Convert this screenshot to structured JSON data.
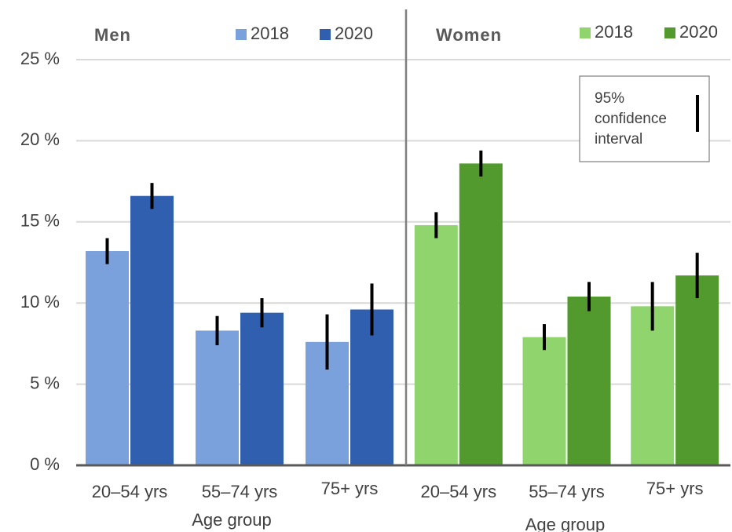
{
  "chart_data": [
    {
      "type": "bar",
      "title": "Men",
      "x_label": "Age group",
      "categories": [
        "20–54 yrs",
        "55–74 yrs",
        "75+ yrs"
      ],
      "series": [
        {
          "name": "2018",
          "color": "#7aa1dc",
          "values": [
            13.2,
            8.3,
            7.6
          ],
          "errors": [
            0.8,
            0.9,
            1.7
          ]
        },
        {
          "name": "2020",
          "color": "#2f5fae",
          "values": [
            16.6,
            9.4,
            9.6
          ],
          "errors": [
            0.8,
            0.9,
            1.6
          ]
        }
      ],
      "ylim": [
        0,
        25
      ],
      "yticks": [
        {
          "value": 0,
          "label": "0 %"
        },
        {
          "value": 5,
          "label": "5 %"
        },
        {
          "value": 10,
          "label": "10 %"
        },
        {
          "value": 15,
          "label": "15 %"
        },
        {
          "value": 20,
          "label": "20 %"
        },
        {
          "value": 25,
          "label": "25 %"
        }
      ],
      "grid": true
    },
    {
      "type": "bar",
      "title": "Women",
      "x_label": "Age group",
      "categories": [
        "20–54 yrs",
        "55–74 yrs",
        "75+ yrs"
      ],
      "series": [
        {
          "name": "2018",
          "color": "#8fd46d",
          "values": [
            14.8,
            7.9,
            9.8
          ],
          "errors": [
            0.8,
            0.8,
            1.5
          ]
        },
        {
          "name": "2020",
          "color": "#529a2e",
          "values": [
            18.6,
            10.4,
            11.7
          ],
          "errors": [
            0.8,
            0.9,
            1.4
          ]
        }
      ],
      "annotation": [
        "95%",
        "confidence",
        "interval"
      ]
    }
  ]
}
